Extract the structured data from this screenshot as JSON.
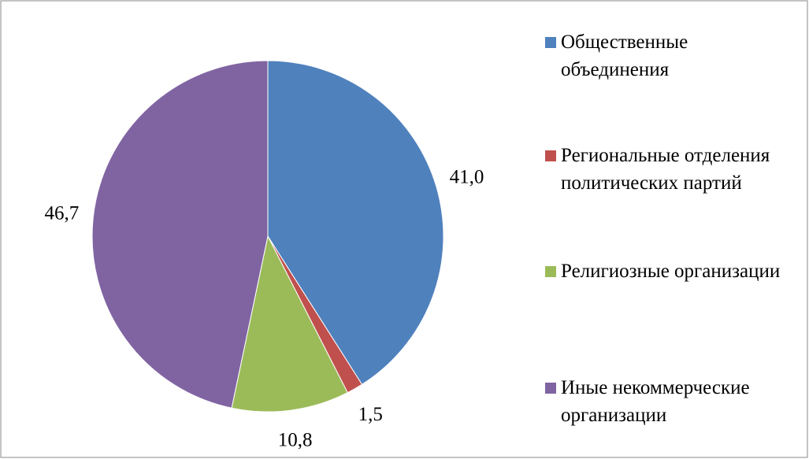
{
  "chart_data": {
    "type": "pie",
    "categories": [
      "Общественные объединения",
      "Региональные отделения политических партий",
      "Религиозные организации",
      "Иные некоммерческие организации"
    ],
    "values": [
      41.0,
      1.5,
      10.8,
      46.7
    ],
    "value_labels": [
      "41,0",
      "1,5",
      "10,8",
      "46,7"
    ],
    "colors": [
      "#4f81bd",
      "#c0504d",
      "#9bbb59",
      "#8064a2"
    ],
    "legend": "right"
  }
}
